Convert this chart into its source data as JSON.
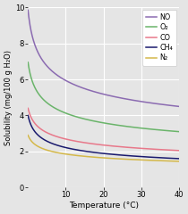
{
  "title": "",
  "xlabel": "Temperature (°C)",
  "ylabel": "Solubility (mg/100 g H₂O)",
  "xlim": [
    0,
    40
  ],
  "ylim": [
    0,
    10
  ],
  "xticks": [
    10,
    20,
    30,
    40
  ],
  "yticks": [
    0,
    2,
    4,
    6,
    8,
    10
  ],
  "background_color": "#e5e5e5",
  "series": [
    {
      "label": "NO",
      "color": "#8b6bb1",
      "val_0": 9.85,
      "val_40": 4.5
    },
    {
      "label": "O₂",
      "color": "#6ab46a",
      "val_0": 6.95,
      "val_40": 3.1
    },
    {
      "label": "CO",
      "color": "#e8788a",
      "val_0": 4.4,
      "val_40": 2.05
    },
    {
      "label": "CH₄",
      "color": "#1a1a6e",
      "val_0": 4.0,
      "val_40": 1.6
    },
    {
      "label": "N₂",
      "color": "#d4b84a",
      "val_0": 2.9,
      "val_40": 1.45
    }
  ]
}
